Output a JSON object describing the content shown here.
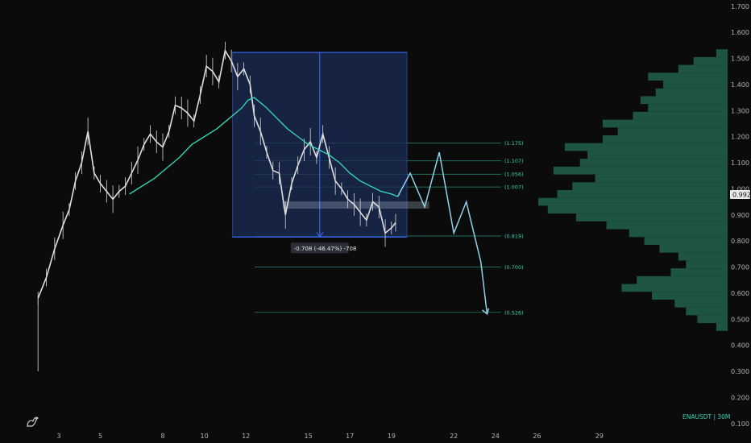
{
  "symbol_label": "ENAUSDT | 30M",
  "chart_data": {
    "type": "line",
    "symbol": "ENAUSDT",
    "timeframe": "30M",
    "current_price": "0.992",
    "y_axis": {
      "ticks": [
        "1.700",
        "1.600",
        "1.500",
        "1.400",
        "1.300",
        "1.200",
        "1.100",
        "1.000",
        "0.900",
        "0.800",
        "0.700",
        "0.600",
        "0.500",
        "0.400",
        "0.300",
        "0.200",
        "0.100"
      ],
      "range": [
        0.07,
        1.71
      ]
    },
    "x_axis": {
      "ticks": [
        "3",
        "5",
        "8",
        "10",
        "12",
        "15",
        "17",
        "19",
        "22",
        "24",
        "26",
        "29"
      ]
    },
    "price_series": {
      "name": "",
      "x": [
        2.0,
        2.4,
        2.8,
        3.2,
        3.5,
        3.8,
        4.1,
        4.4,
        4.7,
        5.0,
        5.3,
        5.6,
        5.9,
        6.2,
        6.5,
        6.8,
        7.1,
        7.4,
        7.7,
        8.0,
        8.3,
        8.6,
        8.9,
        9.2,
        9.5,
        9.8,
        10.1,
        10.4,
        10.7,
        11.0,
        11.3,
        11.6,
        11.9,
        12.2,
        12.4,
        12.7,
        13.0,
        13.3,
        13.6,
        13.9,
        14.2,
        14.5,
        14.8,
        15.1,
        15.4,
        15.7,
        16.0,
        16.3,
        16.6,
        16.9,
        17.2,
        17.5,
        17.8,
        18.1,
        18.4,
        18.7,
        19.0,
        19.2
      ],
      "y": [
        0.58,
        0.66,
        0.77,
        0.86,
        0.92,
        1.03,
        1.1,
        1.22,
        1.06,
        1.02,
        0.99,
        0.96,
        0.99,
        1.01,
        1.06,
        1.11,
        1.17,
        1.21,
        1.18,
        1.16,
        1.22,
        1.32,
        1.31,
        1.29,
        1.26,
        1.36,
        1.47,
        1.45,
        1.41,
        1.53,
        1.49,
        1.43,
        1.46,
        1.4,
        1.28,
        1.22,
        1.14,
        1.07,
        1.06,
        0.9,
        1.02,
        1.09,
        1.15,
        1.18,
        1.12,
        1.21,
        1.12,
        1.03,
        1.0,
        0.96,
        0.94,
        0.91,
        0.88,
        0.95,
        0.93,
        0.83,
        0.85,
        0.87
      ]
    },
    "ma_series": {
      "name": "",
      "color": "#34d3b4",
      "x": [
        6.4,
        7.0,
        7.6,
        8.2,
        8.8,
        9.4,
        10.0,
        10.6,
        11.2,
        11.8,
        12.1,
        12.4,
        12.7,
        13.0,
        13.5,
        14.0,
        14.5,
        15.0,
        15.5,
        16.0,
        16.5,
        17.0,
        17.5,
        18.0,
        18.5,
        19.0,
        19.3
      ],
      "y": [
        0.98,
        1.01,
        1.04,
        1.08,
        1.12,
        1.17,
        1.2,
        1.23,
        1.27,
        1.31,
        1.34,
        1.35,
        1.33,
        1.31,
        1.27,
        1.23,
        1.2,
        1.17,
        1.15,
        1.13,
        1.1,
        1.06,
        1.03,
        1.01,
        0.99,
        0.98,
        0.97
      ]
    },
    "projection": {
      "color": "#8fd0ea",
      "x": [
        19.3,
        19.9,
        20.6,
        21.3,
        22.0,
        22.6,
        23.3,
        23.6
      ],
      "y": [
        0.97,
        1.06,
        0.93,
        1.14,
        0.83,
        0.95,
        0.72,
        0.52
      ]
    },
    "fib_levels": [
      {
        "label": "(1.175)",
        "value": 1.175
      },
      {
        "label": "(1.107)",
        "value": 1.107
      },
      {
        "label": "(1.056)",
        "value": 1.056
      },
      {
        "label": "(1.007)",
        "value": 1.007
      },
      {
        "label": "(0.819)",
        "value": 0.819
      },
      {
        "label": "(0.700)",
        "value": 0.7
      },
      {
        "label": "(0.526)",
        "value": 0.526
      }
    ],
    "measure": {
      "label": "-0.708 (-46.47%) -708",
      "x_start": 11.35,
      "x_end": 19.75,
      "y_top": 1.523,
      "y_bottom": 0.815
    },
    "zone": {
      "x_start": 13.8,
      "x_end": 20.8,
      "y_top": 0.95,
      "y_bottom": 0.925
    },
    "volume_profile": {
      "color": "#1f5c4a",
      "levels": [
        0.47,
        0.5,
        0.53,
        0.56,
        0.59,
        0.62,
        0.65,
        0.68,
        0.71,
        0.74,
        0.77,
        0.8,
        0.83,
        0.86,
        0.89,
        0.92,
        0.95,
        0.98,
        1.01,
        1.04,
        1.07,
        1.1,
        1.13,
        1.16,
        1.19,
        1.22,
        1.25,
        1.28,
        1.31,
        1.34,
        1.37,
        1.4,
        1.43,
        1.46,
        1.49,
        1.52
      ],
      "volumes": [
        0.06,
        0.16,
        0.22,
        0.28,
        0.4,
        0.56,
        0.48,
        0.3,
        0.22,
        0.26,
        0.36,
        0.44,
        0.52,
        0.64,
        0.8,
        0.95,
        1.0,
        0.9,
        0.82,
        0.7,
        0.92,
        0.78,
        0.74,
        0.86,
        0.66,
        0.58,
        0.66,
        0.5,
        0.42,
        0.46,
        0.38,
        0.34,
        0.42,
        0.26,
        0.18,
        0.06
      ]
    }
  }
}
